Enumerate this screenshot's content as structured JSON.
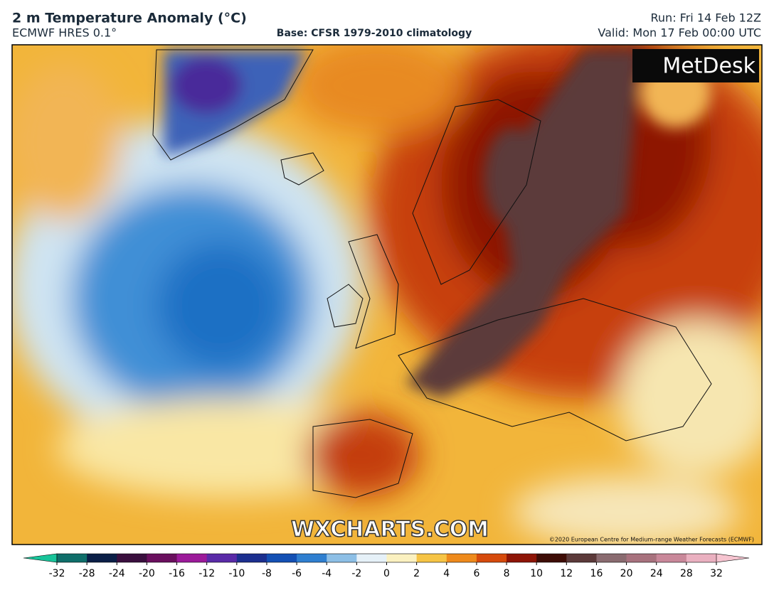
{
  "header": {
    "title": "2 m Temperature Anomaly (°C)",
    "model": "ECMWF HRES 0.1°",
    "base": "Base: CFSR 1979-2010 climatology",
    "run": "Run: Fri 14 Feb 12Z",
    "valid": "Valid: Mon 17 Feb 00:00 UTC"
  },
  "map": {
    "logo": "MetDesk",
    "watermark": "WXCHARTS.COM",
    "copyright": "©2020 European Centre for Medium-range Weather Forecasts (ECMWF)"
  },
  "colorbar": {
    "ticks": [
      -32,
      -28,
      -24,
      -20,
      -16,
      -12,
      -10,
      -8,
      -6,
      -4,
      -2,
      0,
      2,
      4,
      6,
      8,
      10,
      12,
      16,
      20,
      24,
      28,
      32
    ],
    "colors": [
      "#0f6e6a",
      "#0b1f47",
      "#3a0f3e",
      "#6a0f5e",
      "#9c1a9a",
      "#5a2aa8",
      "#1c2f8f",
      "#1450b4",
      "#2f7fd0",
      "#8dbfe6",
      "#e6f1f8",
      "#fbf1c0",
      "#f6c445",
      "#ee8a1c",
      "#d64a0c",
      "#8e1506",
      "#3e0d06",
      "#5c3a3a",
      "#8a6b70",
      "#a8727e",
      "#c9889a",
      "#eab0c0"
    ],
    "under_color": "#18c49a",
    "over_color": "#f6c4d0"
  }
}
